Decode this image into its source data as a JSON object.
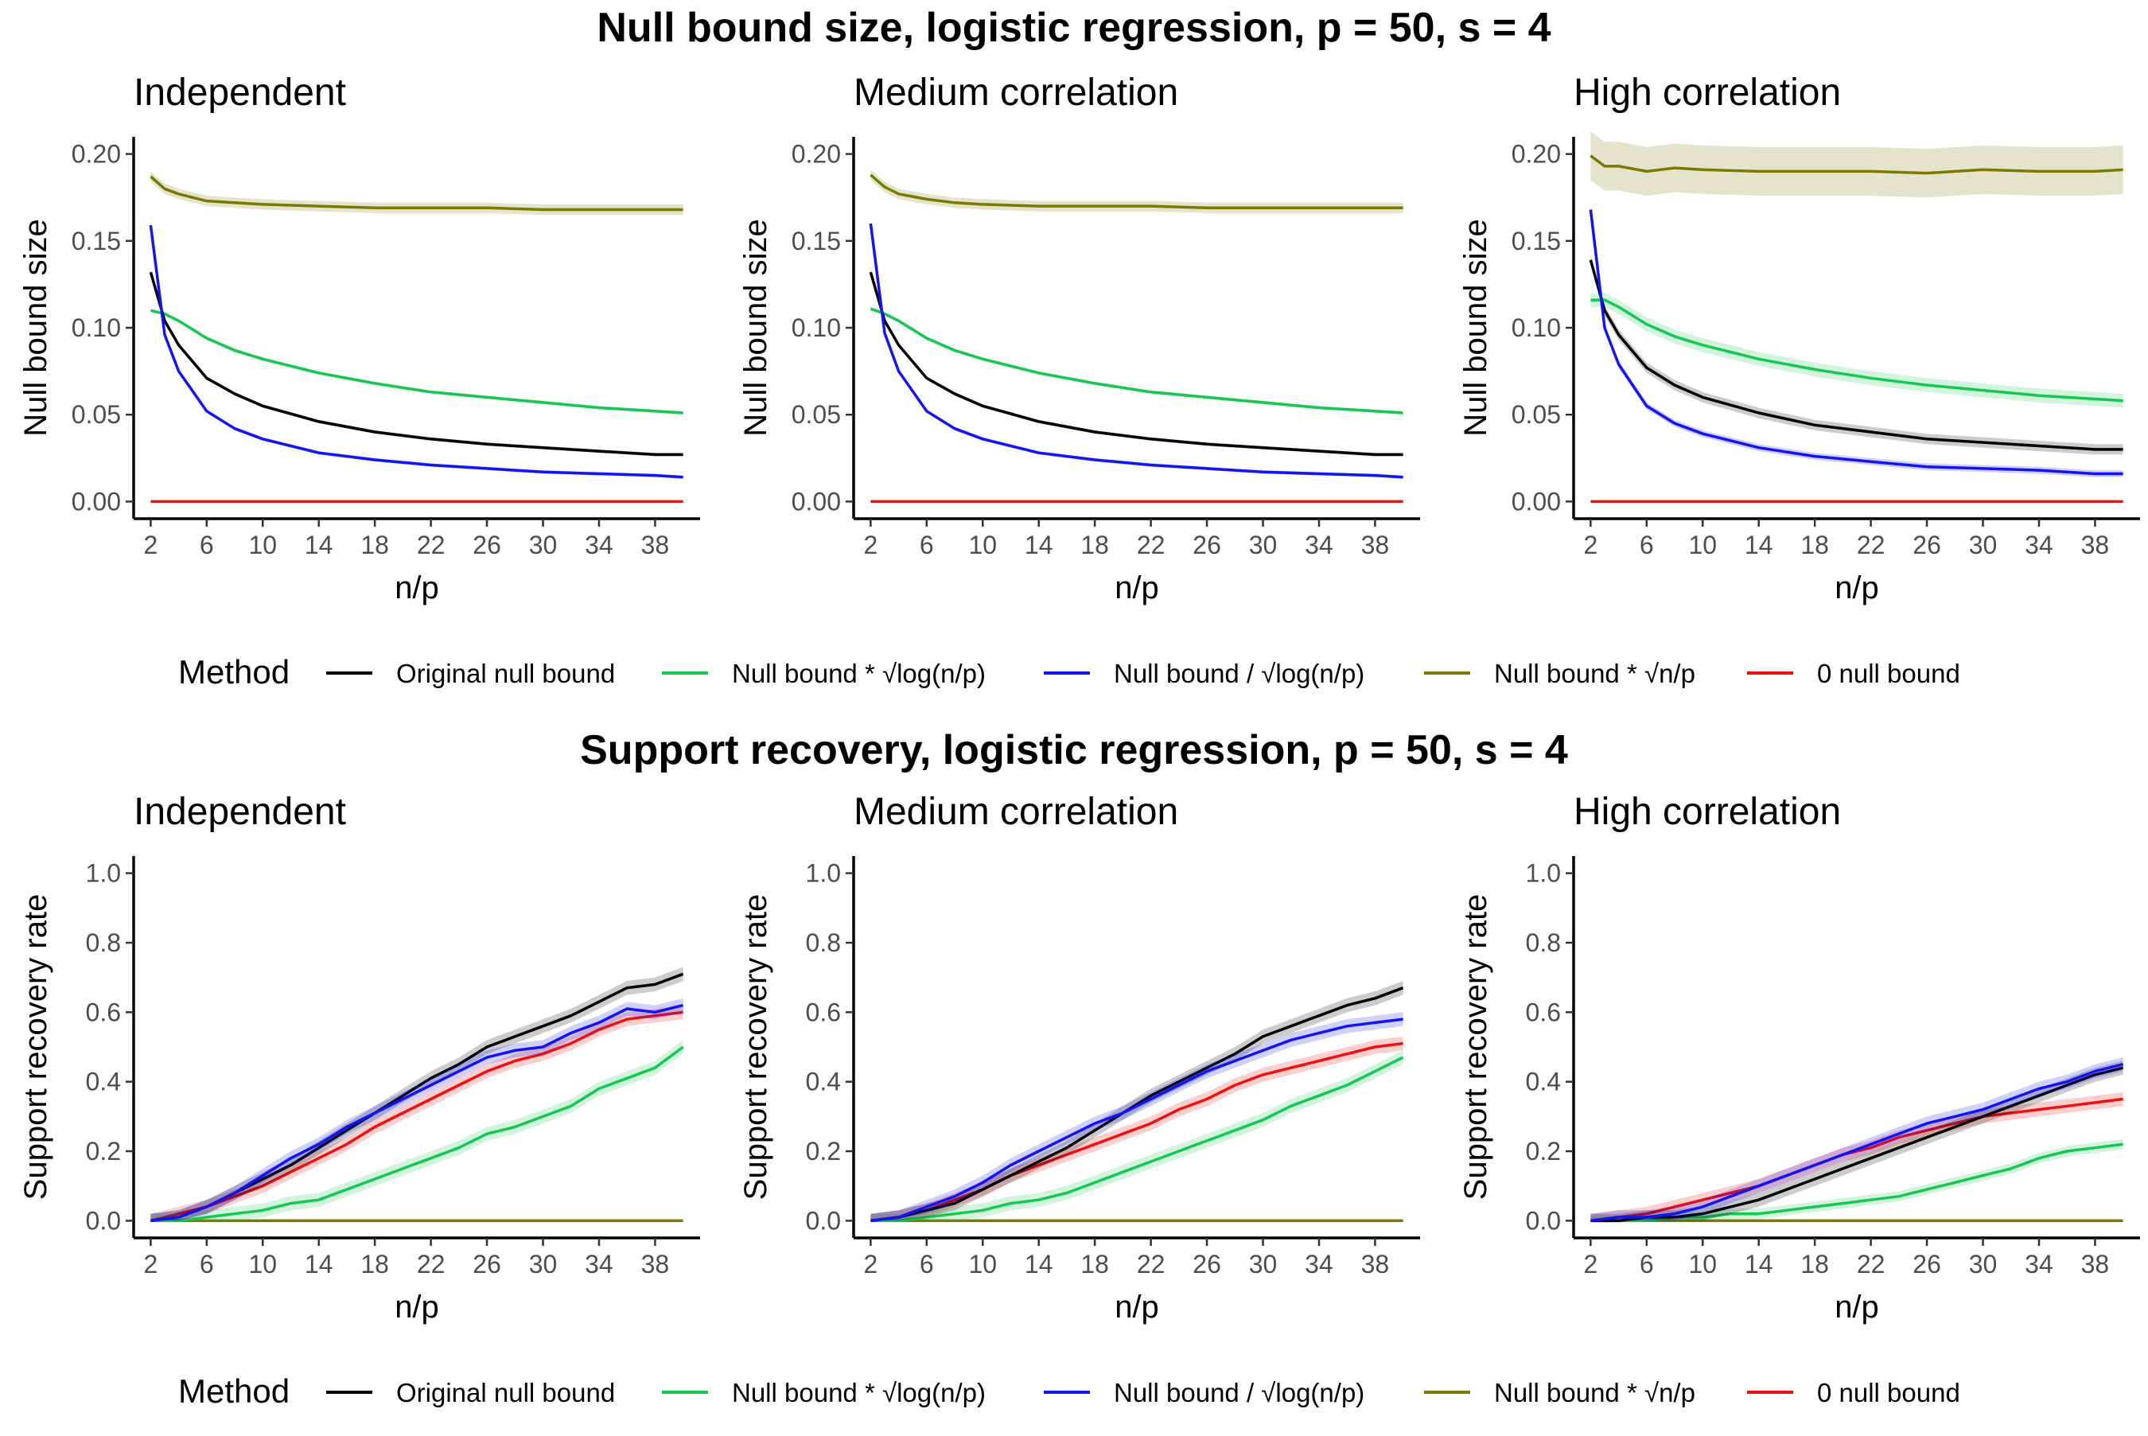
{
  "figure": {
    "method_label": "Method",
    "methods": [
      {
        "id": "orig",
        "name": "Original null bound",
        "color": "#000000"
      },
      {
        "id": "mult_log",
        "name": "Null bound * √log(n/p)",
        "color": "#17C653"
      },
      {
        "id": "div_log",
        "name": "Null bound / √log(n/p)",
        "color": "#1414F0"
      },
      {
        "id": "mult_np",
        "name": "Null bound * √n/p",
        "color": "#7A7A00"
      },
      {
        "id": "zero",
        "name": "0 null bound",
        "color": "#EE1111"
      }
    ],
    "rows": [
      {
        "title": "Null bound size, logistic regression, p = 50, s = 4",
        "ylabel": "Null bound size",
        "xlabel": "n/p"
      },
      {
        "title": "Support recovery, logistic regression, p = 50, s = 4",
        "ylabel": "Support recovery rate",
        "xlabel": "n/p"
      }
    ]
  },
  "chart_data": [
    {
      "type": "line",
      "row": 0,
      "title": "Independent",
      "xlabel": "n/p",
      "ylabel": "Null bound size",
      "xlim": [
        2,
        40
      ],
      "ylim": [
        0,
        0.2
      ],
      "xticks": [
        "2",
        "6",
        "10",
        "14",
        "18",
        "22",
        "26",
        "30",
        "34",
        "38"
      ],
      "yticks": [
        "0.00",
        "0.05",
        "0.10",
        "0.15",
        "0.20"
      ],
      "x": [
        2,
        3,
        4,
        6,
        8,
        10,
        14,
        18,
        22,
        26,
        30,
        34,
        38,
        40
      ],
      "series": [
        {
          "name": "Original null bound",
          "values": [
            0.132,
            0.104,
            0.09,
            0.071,
            0.062,
            0.055,
            0.046,
            0.04,
            0.036,
            0.033,
            0.031,
            0.029,
            0.027,
            0.027
          ],
          "band": 0.001
        },
        {
          "name": "Null bound * √log(n/p)",
          "values": [
            0.11,
            0.108,
            0.104,
            0.094,
            0.087,
            0.082,
            0.074,
            0.068,
            0.063,
            0.06,
            0.057,
            0.054,
            0.052,
            0.051
          ],
          "band": 0.001
        },
        {
          "name": "Null bound / √log(n/p)",
          "values": [
            0.159,
            0.096,
            0.075,
            0.052,
            0.042,
            0.036,
            0.028,
            0.024,
            0.021,
            0.019,
            0.017,
            0.016,
            0.015,
            0.014
          ],
          "band": 0.001
        },
        {
          "name": "Null bound * √n/p",
          "values": [
            0.187,
            0.18,
            0.177,
            0.173,
            0.172,
            0.171,
            0.17,
            0.169,
            0.169,
            0.169,
            0.168,
            0.168,
            0.168,
            0.168
          ],
          "band": 0.003
        },
        {
          "name": "0 null bound",
          "values": [
            0,
            0,
            0,
            0,
            0,
            0,
            0,
            0,
            0,
            0,
            0,
            0,
            0,
            0
          ],
          "band": 0
        }
      ]
    },
    {
      "type": "line",
      "row": 0,
      "title": "Medium correlation",
      "xlabel": "n/p",
      "ylabel": "Null bound size",
      "xlim": [
        2,
        40
      ],
      "ylim": [
        0,
        0.2
      ],
      "xticks": [
        "2",
        "6",
        "10",
        "14",
        "18",
        "22",
        "26",
        "30",
        "34",
        "38"
      ],
      "yticks": [
        "0.00",
        "0.05",
        "0.10",
        "0.15",
        "0.20"
      ],
      "x": [
        2,
        3,
        4,
        6,
        8,
        10,
        14,
        18,
        22,
        26,
        30,
        34,
        38,
        40
      ],
      "series": [
        {
          "name": "Original null bound",
          "values": [
            0.132,
            0.104,
            0.09,
            0.071,
            0.062,
            0.055,
            0.046,
            0.04,
            0.036,
            0.033,
            0.031,
            0.029,
            0.027,
            0.027
          ],
          "band": 0.001
        },
        {
          "name": "Null bound * √log(n/p)",
          "values": [
            0.111,
            0.108,
            0.104,
            0.094,
            0.087,
            0.082,
            0.074,
            0.068,
            0.063,
            0.06,
            0.057,
            0.054,
            0.052,
            0.051
          ],
          "band": 0.001
        },
        {
          "name": "Null bound / √log(n/p)",
          "values": [
            0.16,
            0.097,
            0.075,
            0.052,
            0.042,
            0.036,
            0.028,
            0.024,
            0.021,
            0.019,
            0.017,
            0.016,
            0.015,
            0.014
          ],
          "band": 0.001
        },
        {
          "name": "Null bound * √n/p",
          "values": [
            0.188,
            0.181,
            0.177,
            0.174,
            0.172,
            0.171,
            0.17,
            0.17,
            0.17,
            0.169,
            0.169,
            0.169,
            0.169,
            0.169
          ],
          "band": 0.003
        },
        {
          "name": "0 null bound",
          "values": [
            0,
            0,
            0,
            0,
            0,
            0,
            0,
            0,
            0,
            0,
            0,
            0,
            0,
            0
          ],
          "band": 0
        }
      ]
    },
    {
      "type": "line",
      "row": 0,
      "title": "High correlation",
      "xlabel": "n/p",
      "ylabel": "Null bound size",
      "xlim": [
        2,
        40
      ],
      "ylim": [
        0,
        0.2
      ],
      "xticks": [
        "2",
        "6",
        "10",
        "14",
        "18",
        "22",
        "26",
        "30",
        "34",
        "38"
      ],
      "yticks": [
        "0.00",
        "0.05",
        "0.10",
        "0.15",
        "0.20"
      ],
      "x": [
        2,
        3,
        4,
        6,
        8,
        10,
        14,
        18,
        22,
        26,
        30,
        34,
        38,
        40
      ],
      "series": [
        {
          "name": "Original null bound",
          "values": [
            0.139,
            0.11,
            0.096,
            0.077,
            0.067,
            0.06,
            0.051,
            0.044,
            0.04,
            0.036,
            0.034,
            0.032,
            0.03,
            0.03
          ],
          "band": 0.003
        },
        {
          "name": "Null bound * √log(n/p)",
          "values": [
            0.116,
            0.116,
            0.112,
            0.102,
            0.095,
            0.09,
            0.082,
            0.076,
            0.071,
            0.067,
            0.064,
            0.061,
            0.059,
            0.058
          ],
          "band": 0.004
        },
        {
          "name": "Null bound / √log(n/p)",
          "values": [
            0.168,
            0.1,
            0.079,
            0.055,
            0.045,
            0.039,
            0.031,
            0.026,
            0.023,
            0.02,
            0.019,
            0.018,
            0.016,
            0.016
          ],
          "band": 0.002
        },
        {
          "name": "Null bound * √n/p",
          "values": [
            0.199,
            0.193,
            0.193,
            0.19,
            0.192,
            0.191,
            0.19,
            0.19,
            0.19,
            0.189,
            0.191,
            0.19,
            0.19,
            0.191
          ],
          "band": 0.014
        },
        {
          "name": "0 null bound",
          "values": [
            0,
            0,
            0,
            0,
            0,
            0,
            0,
            0,
            0,
            0,
            0,
            0,
            0,
            0
          ],
          "band": 0
        }
      ]
    },
    {
      "type": "line",
      "row": 1,
      "title": "Independent",
      "xlabel": "n/p",
      "ylabel": "Support recovery rate",
      "xlim": [
        2,
        40
      ],
      "ylim": [
        0,
        1
      ],
      "xticks": [
        "2",
        "6",
        "10",
        "14",
        "18",
        "22",
        "26",
        "30",
        "34",
        "38"
      ],
      "yticks": [
        "0.0",
        "0.2",
        "0.4",
        "0.6",
        "0.8",
        "1.0"
      ],
      "x": [
        2,
        4,
        6,
        8,
        10,
        12,
        14,
        16,
        18,
        20,
        22,
        24,
        26,
        28,
        30,
        32,
        34,
        36,
        38,
        40
      ],
      "series": [
        {
          "name": "Original null bound",
          "values": [
            0,
            0.01,
            0.04,
            0.08,
            0.12,
            0.16,
            0.21,
            0.26,
            0.31,
            0.36,
            0.41,
            0.45,
            0.5,
            0.53,
            0.56,
            0.59,
            0.63,
            0.67,
            0.68,
            0.71
          ],
          "band": 0.02
        },
        {
          "name": "Null bound * √log(n/p)",
          "values": [
            0,
            0,
            0.01,
            0.02,
            0.03,
            0.05,
            0.06,
            0.09,
            0.12,
            0.15,
            0.18,
            0.21,
            0.25,
            0.27,
            0.3,
            0.33,
            0.38,
            0.41,
            0.44,
            0.5
          ],
          "band": 0.02
        },
        {
          "name": "Null bound / √log(n/p)",
          "values": [
            0,
            0.01,
            0.04,
            0.08,
            0.13,
            0.18,
            0.22,
            0.27,
            0.31,
            0.35,
            0.39,
            0.43,
            0.47,
            0.49,
            0.5,
            0.54,
            0.57,
            0.61,
            0.6,
            0.62
          ],
          "band": 0.02
        },
        {
          "name": "Null bound * √n/p",
          "values": [
            0,
            0,
            0,
            0,
            0,
            0,
            0,
            0,
            0,
            0,
            0,
            0,
            0,
            0,
            0,
            0,
            0,
            0,
            0,
            0
          ],
          "band": 0
        },
        {
          "name": "0 null bound",
          "values": [
            0,
            0.02,
            0.04,
            0.07,
            0.1,
            0.14,
            0.18,
            0.22,
            0.27,
            0.31,
            0.35,
            0.39,
            0.43,
            0.46,
            0.48,
            0.51,
            0.55,
            0.58,
            0.59,
            0.6
          ],
          "band": 0.02
        }
      ]
    },
    {
      "type": "line",
      "row": 1,
      "title": "Medium correlation",
      "xlabel": "n/p",
      "ylabel": "Support recovery rate",
      "xlim": [
        2,
        40
      ],
      "ylim": [
        0,
        1
      ],
      "xticks": [
        "2",
        "6",
        "10",
        "14",
        "18",
        "22",
        "26",
        "30",
        "34",
        "38"
      ],
      "yticks": [
        "0.0",
        "0.2",
        "0.4",
        "0.6",
        "0.8",
        "1.0"
      ],
      "x": [
        2,
        4,
        6,
        8,
        10,
        12,
        14,
        16,
        18,
        20,
        22,
        24,
        26,
        28,
        30,
        32,
        34,
        36,
        38,
        40
      ],
      "series": [
        {
          "name": "Original null bound",
          "values": [
            0,
            0.01,
            0.03,
            0.05,
            0.09,
            0.13,
            0.17,
            0.21,
            0.26,
            0.31,
            0.36,
            0.4,
            0.44,
            0.48,
            0.53,
            0.56,
            0.59,
            0.62,
            0.64,
            0.67
          ],
          "band": 0.02
        },
        {
          "name": "Null bound * √log(n/p)",
          "values": [
            0,
            0,
            0.01,
            0.02,
            0.03,
            0.05,
            0.06,
            0.08,
            0.11,
            0.14,
            0.17,
            0.2,
            0.23,
            0.26,
            0.29,
            0.33,
            0.36,
            0.39,
            0.43,
            0.47
          ],
          "band": 0.02
        },
        {
          "name": "Null bound / √log(n/p)",
          "values": [
            0,
            0.01,
            0.04,
            0.07,
            0.11,
            0.16,
            0.2,
            0.24,
            0.28,
            0.31,
            0.35,
            0.39,
            0.43,
            0.46,
            0.49,
            0.52,
            0.54,
            0.56,
            0.57,
            0.58
          ],
          "band": 0.02
        },
        {
          "name": "Null bound * √n/p",
          "values": [
            0,
            0,
            0,
            0,
            0,
            0,
            0,
            0,
            0,
            0,
            0,
            0,
            0,
            0,
            0,
            0,
            0,
            0,
            0,
            0
          ],
          "band": 0
        },
        {
          "name": "0 null bound",
          "values": [
            0,
            0.01,
            0.03,
            0.06,
            0.09,
            0.13,
            0.16,
            0.19,
            0.22,
            0.25,
            0.28,
            0.32,
            0.35,
            0.39,
            0.42,
            0.44,
            0.46,
            0.48,
            0.5,
            0.51
          ],
          "band": 0.02
        }
      ]
    },
    {
      "type": "line",
      "row": 1,
      "title": "High correlation",
      "xlabel": "n/p",
      "ylabel": "Support recovery rate",
      "xlim": [
        2,
        40
      ],
      "ylim": [
        0,
        1
      ],
      "xticks": [
        "2",
        "6",
        "10",
        "14",
        "18",
        "22",
        "26",
        "30",
        "34",
        "38"
      ],
      "yticks": [
        "0.0",
        "0.2",
        "0.4",
        "0.6",
        "0.8",
        "1.0"
      ],
      "x": [
        2,
        4,
        6,
        8,
        10,
        12,
        14,
        16,
        18,
        20,
        22,
        24,
        26,
        28,
        30,
        32,
        34,
        36,
        38,
        40
      ],
      "series": [
        {
          "name": "Original null bound",
          "values": [
            0,
            0,
            0.01,
            0.01,
            0.02,
            0.04,
            0.06,
            0.09,
            0.12,
            0.15,
            0.18,
            0.21,
            0.24,
            0.27,
            0.3,
            0.33,
            0.36,
            0.39,
            0.42,
            0.44
          ],
          "band": 0.02
        },
        {
          "name": "Null bound * √log(n/p)",
          "values": [
            0,
            0,
            0,
            0.01,
            0.01,
            0.02,
            0.02,
            0.03,
            0.04,
            0.05,
            0.06,
            0.07,
            0.09,
            0.11,
            0.13,
            0.15,
            0.18,
            0.2,
            0.21,
            0.22
          ],
          "band": 0.015
        },
        {
          "name": "Null bound / √log(n/p)",
          "values": [
            0,
            0.01,
            0.01,
            0.02,
            0.04,
            0.07,
            0.1,
            0.13,
            0.16,
            0.19,
            0.22,
            0.25,
            0.28,
            0.3,
            0.32,
            0.35,
            0.38,
            0.4,
            0.43,
            0.45
          ],
          "band": 0.02
        },
        {
          "name": "Null bound * √n/p",
          "values": [
            0,
            0,
            0,
            0,
            0,
            0,
            0,
            0,
            0,
            0,
            0,
            0,
            0,
            0,
            0,
            0,
            0,
            0,
            0,
            0
          ],
          "band": 0
        },
        {
          "name": "0 null bound",
          "values": [
            0,
            0.01,
            0.02,
            0.04,
            0.06,
            0.08,
            0.1,
            0.13,
            0.16,
            0.19,
            0.21,
            0.24,
            0.26,
            0.28,
            0.3,
            0.31,
            0.32,
            0.33,
            0.34,
            0.35
          ],
          "band": 0.02
        }
      ]
    }
  ]
}
